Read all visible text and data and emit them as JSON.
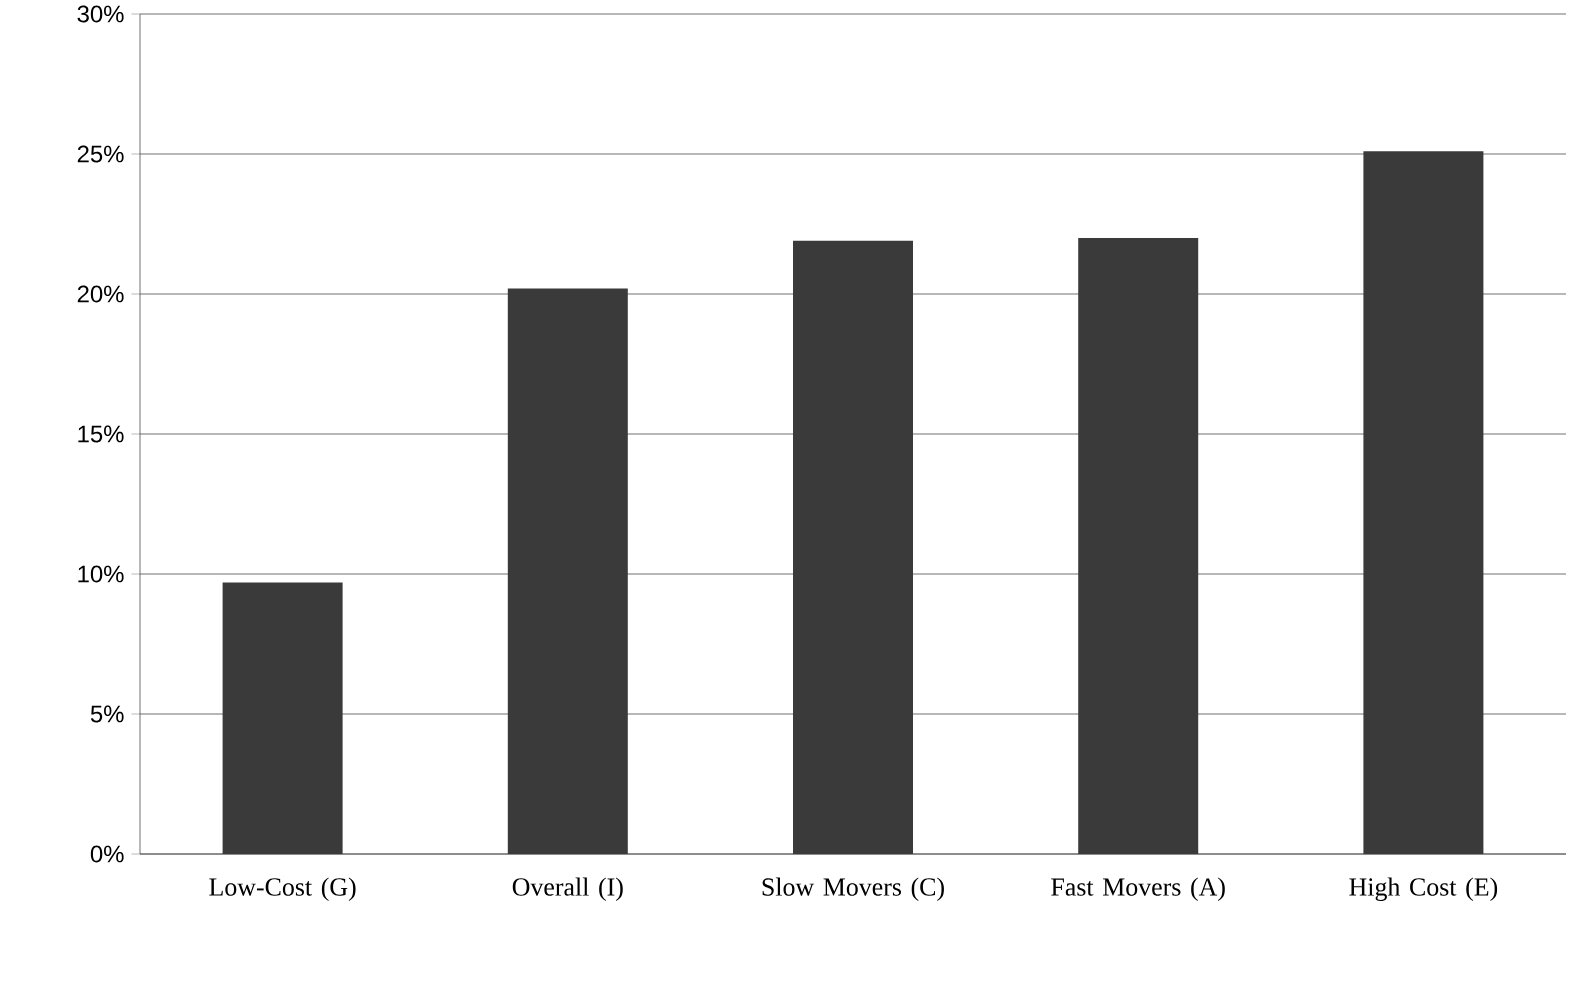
{
  "chart_data": {
    "type": "bar",
    "categories": [
      "Low-Cost (G)",
      "Overall (I)",
      "Slow Movers (C)",
      "Fast Movers (A)",
      "High Cost (E)"
    ],
    "values": [
      9.7,
      20.2,
      21.9,
      22.0,
      25.1
    ],
    "color": "#3a3a3a",
    "ylim": [
      0,
      30
    ],
    "yticks": [
      {
        "value": 0,
        "label": "0%"
      },
      {
        "value": 5,
        "label": "5%"
      },
      {
        "value": 10,
        "label": "10%"
      },
      {
        "value": 15,
        "label": "15%"
      },
      {
        "value": 20,
        "label": "20%"
      },
      {
        "value": 25,
        "label": "25%"
      },
      {
        "value": 30,
        "label": "30%"
      }
    ],
    "grid": "y"
  }
}
